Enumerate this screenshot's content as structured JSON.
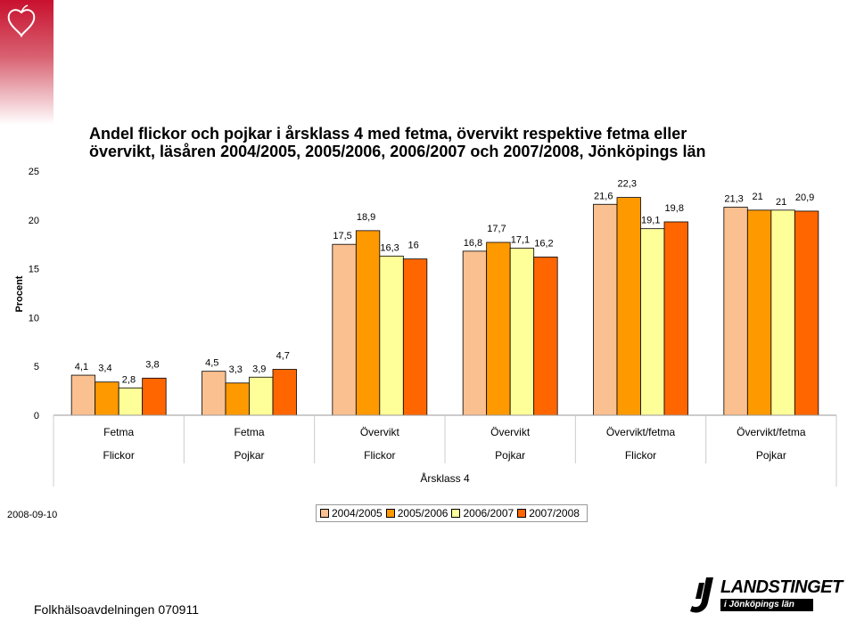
{
  "title_lines": [
    "Andel flickor och pojkar i årsklass 4 med fetma, övervikt respektive fetma eller",
    "övervikt, läsåren 2004/2005, 2005/2006, 2006/2007 och 2007/2008, Jönköpings län"
  ],
  "date": "2008-09-10",
  "footer": "Folkhälsoavdelningen 070911",
  "logo": {
    "name": "LANDSTINGET",
    "tagline": "i Jönköpings län"
  },
  "colors": {
    "corner": "#c8102e",
    "corner_fade": "#e8d8d8"
  },
  "chart_data": {
    "type": "bar",
    "title": "Andel flickor och pojkar i årsklass 4 med fetma, övervikt respektive fetma eller övervikt, läsåren 2004/2005, 2005/2006, 2006/2007 och 2007/2008, Jönköpings län",
    "ylabel": "Procent",
    "xlabel": "Årsklass 4",
    "ylim": [
      0,
      25
    ],
    "yticks": [
      0,
      5,
      10,
      15,
      20,
      25
    ],
    "grid": false,
    "legend_position": "bottom",
    "categories": [
      {
        "group": "Fetma",
        "sex": "Flickor"
      },
      {
        "group": "Fetma",
        "sex": "Pojkar"
      },
      {
        "group": "Övervikt",
        "sex": "Flickor"
      },
      {
        "group": "Övervikt",
        "sex": "Pojkar"
      },
      {
        "group": "Övervikt/fetma",
        "sex": "Flickor"
      },
      {
        "group": "Övervikt/fetma",
        "sex": "Pojkar"
      }
    ],
    "series": [
      {
        "name": "2004/2005",
        "color": "#fac090",
        "values": [
          4.1,
          4.5,
          17.5,
          16.8,
          21.6,
          21.3
        ],
        "labels": [
          "4,1",
          "4,5",
          "17,5",
          "16,8",
          "21,6",
          "21,3"
        ]
      },
      {
        "name": "2005/2006",
        "color": "#ff9900",
        "values": [
          3.4,
          3.3,
          18.9,
          17.7,
          22.3,
          21
        ],
        "labels": [
          "3,4",
          "3,3",
          "18,9",
          "17,7",
          "22,3",
          "21"
        ]
      },
      {
        "name": "2006/2007",
        "color": "#ffff99",
        "values": [
          2.8,
          3.9,
          16.3,
          17.1,
          19.1,
          21
        ],
        "labels": [
          "2,8",
          "3,9",
          "16,3",
          "17,1",
          "19,1",
          "21"
        ]
      },
      {
        "name": "2007/2008",
        "color": "#ff6600",
        "values": [
          3.8,
          4.7,
          16,
          16.2,
          19.8,
          20.9
        ],
        "labels": [
          "3,8",
          "4,7",
          "16",
          "16,2",
          "19,8",
          "20,9"
        ]
      }
    ]
  }
}
